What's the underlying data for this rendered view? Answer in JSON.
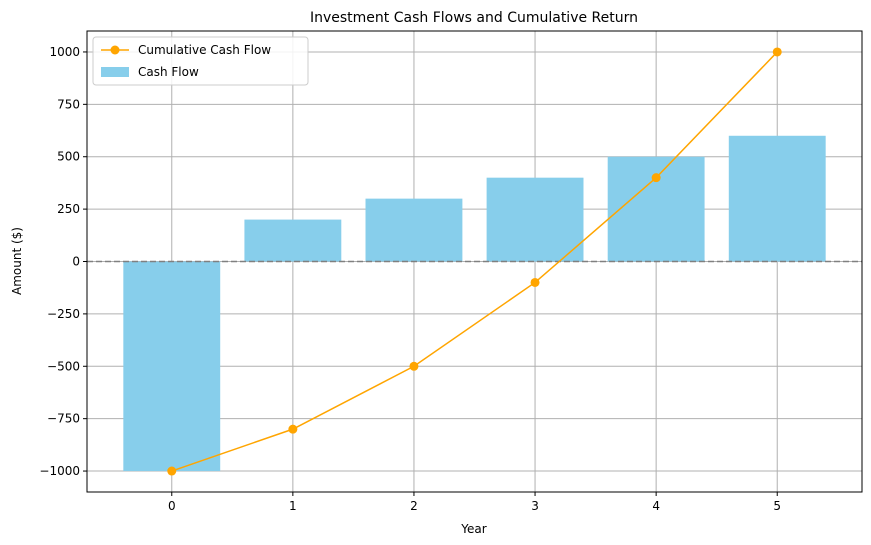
{
  "chart_data": {
    "type": "bar",
    "title": "Investment Cash Flows and Cumulative Return",
    "xlabel": "Year",
    "ylabel": "Amount ($)",
    "x": [
      0,
      1,
      2,
      3,
      4,
      5
    ],
    "x_tick_labels": [
      "0",
      "1",
      "2",
      "3",
      "4",
      "5"
    ],
    "xlim": [
      -0.7,
      5.7
    ],
    "ylim": [
      -1100,
      1100
    ],
    "y_ticks": [
      -1000,
      -750,
      -500,
      -250,
      0,
      250,
      500,
      750,
      1000
    ],
    "y_tick_labels": [
      "−1000",
      "−750",
      "−500",
      "−250",
      "0",
      "250",
      "500",
      "750",
      "1000"
    ],
    "grid": true,
    "zero_line": {
      "value": 0,
      "style": "dashed",
      "color": "#808080"
    },
    "legend_position": "top-left",
    "series": [
      {
        "name": "Cumulative Cash Flow",
        "type": "line",
        "marker": "circle",
        "color": "#ffa500",
        "values": [
          -1000,
          -800,
          -500,
          -100,
          400,
          1000
        ]
      },
      {
        "name": "Cash Flow",
        "type": "bar",
        "color": "#87ceeb",
        "values": [
          -1000,
          200,
          300,
          400,
          500,
          600
        ]
      }
    ]
  }
}
